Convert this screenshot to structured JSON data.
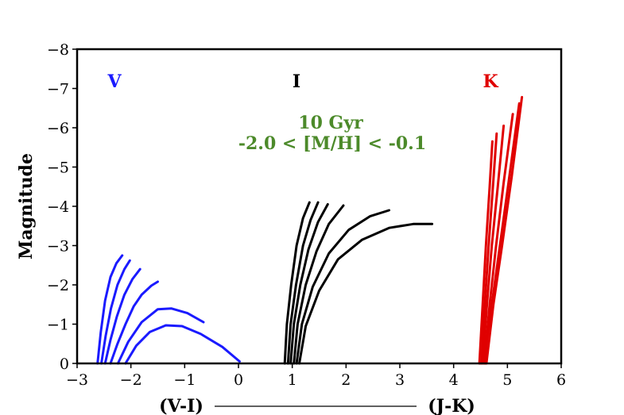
{
  "chart_data": {
    "type": "line",
    "title": "",
    "xlabel_left": "(V-I)",
    "xlabel_right": "(J-K)",
    "ylabel": "Magnitude",
    "xlim": [
      -3,
      6
    ],
    "ylim": [
      0,
      -8
    ],
    "xticks": [
      "−3",
      "−2",
      "−1",
      "0",
      "1",
      "2",
      "3",
      "4",
      "5",
      "6"
    ],
    "yticks": [
      "0",
      "−1",
      "−2",
      "−3",
      "−4",
      "−5",
      "−6",
      "−7",
      "−8"
    ],
    "xtick_values": [
      -3,
      -2,
      -1,
      0,
      1,
      2,
      3,
      4,
      5,
      6
    ],
    "ytick_values": [
      0,
      -1,
      -2,
      -3,
      -4,
      -5,
      -6,
      -7,
      -8
    ],
    "annotation_line1": "10 Gyr",
    "annotation_line2": "-2.0 < [M/H] < -0.1",
    "panels": [
      {
        "label": "V",
        "color": "#1a1aff",
        "series": [
          {
            "name": "V-1",
            "x": [
              -2.62,
              -2.56,
              -2.48,
              -2.38,
              -2.27,
              -2.16
            ],
            "y": [
              0,
              -0.8,
              -1.6,
              -2.2,
              -2.55,
              -2.75
            ]
          },
          {
            "name": "V-2",
            "x": [
              -2.55,
              -2.47,
              -2.37,
              -2.25,
              -2.12,
              -2.02
            ],
            "y": [
              0,
              -0.7,
              -1.4,
              -2.0,
              -2.4,
              -2.62
            ]
          },
          {
            "name": "V-3",
            "x": [
              -2.48,
              -2.38,
              -2.26,
              -2.12,
              -1.97,
              -1.83
            ],
            "y": [
              0,
              -0.6,
              -1.2,
              -1.75,
              -2.15,
              -2.4
            ]
          },
          {
            "name": "V-4",
            "x": [
              -2.38,
              -2.25,
              -2.1,
              -1.95,
              -1.8,
              -1.62,
              -1.5
            ],
            "y": [
              0,
              -0.5,
              -1.0,
              -1.45,
              -1.75,
              -1.98,
              -2.08
            ]
          },
          {
            "name": "V-5",
            "x": [
              -2.24,
              -2.05,
              -1.8,
              -1.5,
              -1.25,
              -0.95,
              -0.65
            ],
            "y": [
              0,
              -0.55,
              -1.05,
              -1.38,
              -1.4,
              -1.28,
              -1.05
            ]
          },
          {
            "name": "V-6",
            "x": [
              -2.1,
              -1.9,
              -1.65,
              -1.35,
              -1.05,
              -0.7,
              -0.3,
              0.02
            ],
            "y": [
              0,
              -0.45,
              -0.8,
              -0.97,
              -0.95,
              -0.75,
              -0.42,
              -0.05
            ]
          }
        ]
      },
      {
        "label": "I",
        "color": "#000000",
        "series": [
          {
            "name": "I-1",
            "x": [
              0.86,
              0.9,
              0.98,
              1.08,
              1.2,
              1.32
            ],
            "y": [
              0,
              -1.0,
              -2.0,
              -3.0,
              -3.7,
              -4.1
            ]
          },
          {
            "name": "I-2",
            "x": [
              0.92,
              0.97,
              1.07,
              1.2,
              1.34,
              1.48
            ],
            "y": [
              0,
              -1.0,
              -2.0,
              -3.0,
              -3.65,
              -4.1
            ]
          },
          {
            "name": "I-3",
            "x": [
              0.97,
              1.03,
              1.15,
              1.3,
              1.48,
              1.66
            ],
            "y": [
              0,
              -1.0,
              -2.0,
              -2.9,
              -3.6,
              -4.05
            ]
          },
          {
            "name": "I-4",
            "x": [
              1.03,
              1.1,
              1.25,
              1.45,
              1.68,
              1.95
            ],
            "y": [
              0,
              -1.0,
              -2.0,
              -2.85,
              -3.55,
              -4.02
            ]
          },
          {
            "name": "I-5",
            "x": [
              1.08,
              1.18,
              1.38,
              1.68,
              2.05,
              2.45,
              2.8
            ],
            "y": [
              0,
              -1.0,
              -1.95,
              -2.8,
              -3.4,
              -3.75,
              -3.9
            ]
          },
          {
            "name": "I-6",
            "x": [
              1.13,
              1.25,
              1.5,
              1.85,
              2.3,
              2.8,
              3.25,
              3.6
            ],
            "y": [
              0,
              -0.95,
              -1.85,
              -2.65,
              -3.15,
              -3.45,
              -3.55,
              -3.55
            ]
          }
        ]
      },
      {
        "label": "K",
        "color": "#e00000",
        "series": [
          {
            "name": "K-1",
            "x": [
              4.48,
              4.54,
              4.6,
              4.67,
              4.72
            ],
            "y": [
              0,
              -1.5,
              -3.0,
              -4.5,
              -5.65
            ]
          },
          {
            "name": "K-2",
            "x": [
              4.51,
              4.58,
              4.65,
              4.73,
              4.8
            ],
            "y": [
              0,
              -1.5,
              -3.0,
              -4.5,
              -5.85
            ]
          },
          {
            "name": "K-3",
            "x": [
              4.54,
              4.62,
              4.71,
              4.82,
              4.93
            ],
            "y": [
              0,
              -1.5,
              -3.0,
              -4.5,
              -6.05
            ]
          },
          {
            "name": "K-4",
            "x": [
              4.57,
              4.67,
              4.79,
              4.93,
              5.1
            ],
            "y": [
              0,
              -1.5,
              -3.0,
              -4.6,
              -6.35
            ]
          },
          {
            "name": "K-5",
            "x": [
              4.59,
              4.71,
              4.86,
              5.03,
              5.22
            ],
            "y": [
              0,
              -1.5,
              -3.0,
              -4.7,
              -6.62
            ]
          },
          {
            "name": "K-6",
            "x": [
              4.61,
              4.74,
              4.9,
              5.08,
              5.27
            ],
            "y": [
              0,
              -1.5,
              -3.0,
              -4.75,
              -6.78
            ]
          }
        ]
      }
    ]
  }
}
